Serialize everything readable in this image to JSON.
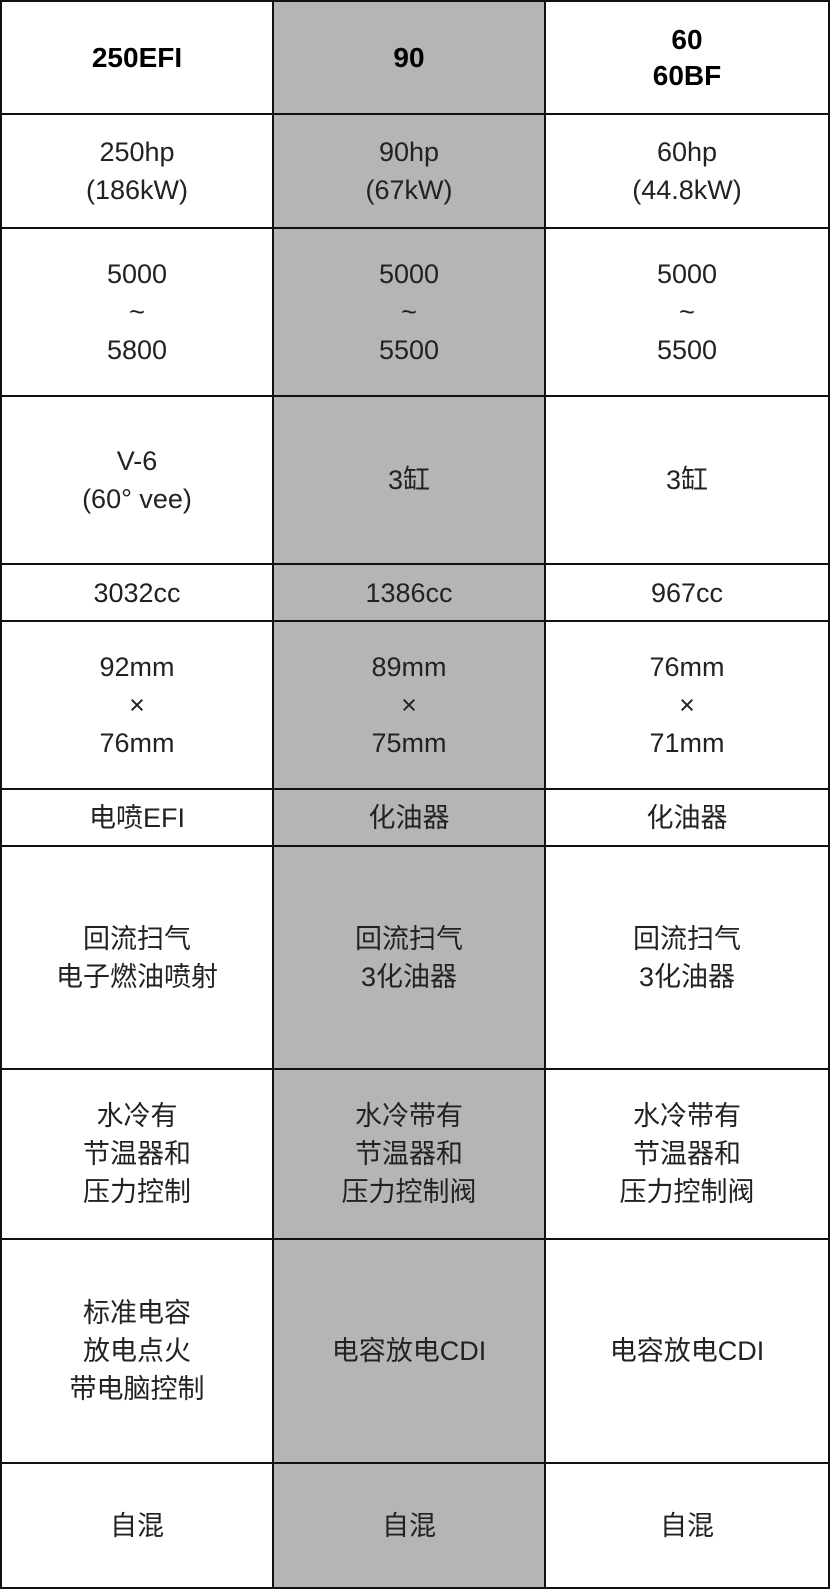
{
  "columns": [
    {
      "header": "250EFI",
      "cells": [
        "250hp\n(186kW)",
        "5000\n~\n5800",
        "V-6\n(60°  vee)",
        "3032cc",
        "92mm\n×\n76mm",
        "电喷EFI",
        "回流扫气\n电子燃油喷射",
        "水冷有\n节温器和\n压力控制",
        "标准电容\n放电点火\n带电脑控制",
        "自混"
      ]
    },
    {
      "header": "90",
      "cells": [
        "90hp\n(67kW)",
        "5000\n~\n5500",
        "3缸",
        "1386cc",
        "89mm\n×\n75mm",
        "化油器",
        "回流扫气\n3化油器",
        "水冷带有\n节温器和\n压力控制阀",
        "电容放电CDI",
        "自混"
      ]
    },
    {
      "header": "60\n60BF",
      "cells": [
        "60hp\n(44.8kW)",
        "5000\n~\n5500",
        "3缸",
        "967cc",
        "76mm\n×\n71mm",
        "化油器",
        "回流扫气\n3化油器",
        "水冷带有\n节温器和\n压力控制阀",
        "电容放电CDI",
        "自混"
      ]
    }
  ],
  "colors": {
    "highlight_column": "#b5b5b5",
    "border": "#111111"
  }
}
